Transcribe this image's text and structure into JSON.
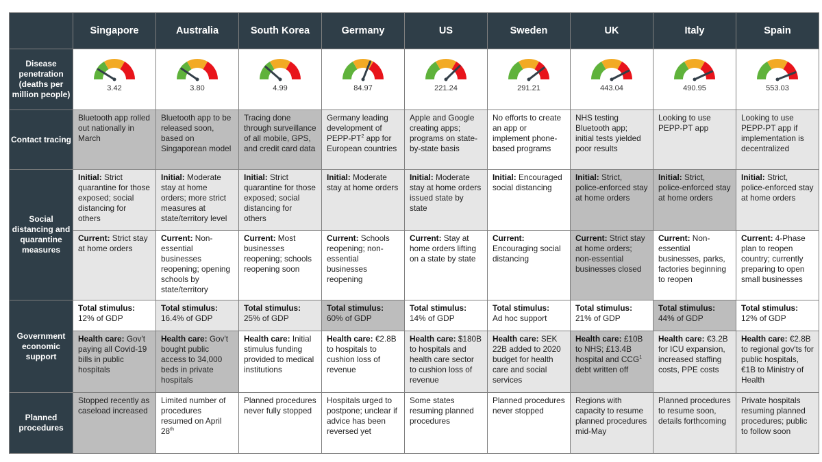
{
  "colors": {
    "header_bg": "#2f3e48",
    "gauge_green": "#5fb23b",
    "gauge_orange": "#f2aa24",
    "gauge_red": "#e8141b"
  },
  "columns": [
    "Singapore",
    "Australia",
    "South Korea",
    "Germany",
    "US",
    "Sweden",
    "UK",
    "Italy",
    "Spain"
  ],
  "rows": {
    "disease": "Disease penetration (deaths per million people)",
    "contact": "Contact tracing",
    "social": "Social distancing and quarantine measures",
    "gov": "Government economic support",
    "planned": "Planned procedures"
  },
  "gauges": [
    {
      "value": "3.42"
    },
    {
      "value": "3.80"
    },
    {
      "value": "4.99"
    },
    {
      "value": "84.97"
    },
    {
      "value": "221.24"
    },
    {
      "value": "291.21"
    },
    {
      "value": "443.04"
    },
    {
      "value": "490.95"
    },
    {
      "value": "553.03"
    }
  ],
  "contact_tracing": [
    {
      "text": "Bluetooth app rolled out nationally in March"
    },
    {
      "text": "Bluetooth app to be released soon, based on Singaporean model"
    },
    {
      "text": "Tracing done through surveillance of all mobile, GPS, and credit card data"
    },
    {
      "pre": "Germany leading development of PEPP-PT",
      "sup": "2",
      "post": " app for European countries"
    },
    {
      "text": "Apple and Google creating apps; programs on state-by-state basis"
    },
    {
      "text": "No efforts to create an app or implement phone-based programs"
    },
    {
      "text": "NHS testing Bluetooth app; initial tests yielded poor results"
    },
    {
      "text": "Looking to use PEPP-PT app"
    },
    {
      "text": "Looking to use PEPP-PT app if implementation is decentralized"
    }
  ],
  "social_initial": [
    {
      "label": "Initial:",
      "text": " Strict quarantine for those exposed; social distancing for others"
    },
    {
      "label": "Initial:",
      "text": " Moderate stay at home orders; more strict measures at state/territory level"
    },
    {
      "label": "Initial:",
      "text": " Strict quarantine for those exposed; social distancing for others"
    },
    {
      "label": "Initial:",
      "text": " Moderate stay at home orders"
    },
    {
      "label": "Initial:",
      "text": " Moderate stay at home orders issued state by state"
    },
    {
      "label": "Initial:",
      "text": " Encouraged social distancing"
    },
    {
      "label": "Initial:",
      "text": " Strict, police-enforced stay at home orders"
    },
    {
      "label": "Initial:",
      "text": " Strict, police-enforced stay at home orders"
    },
    {
      "label": "Initial:",
      "text": " Strict, police-enforced stay at home orders"
    }
  ],
  "social_current": [
    {
      "label": "Current:",
      "text": " Strict stay at home orders"
    },
    {
      "label": "Current:",
      "text": " Non-essential businesses reopening; opening schools by state/territory"
    },
    {
      "label": "Current:",
      "text": " Most businesses reopening; schools reopening soon"
    },
    {
      "label": "Current:",
      "text": " Schools reopening; non-essential businesses reopening"
    },
    {
      "label": "Current:",
      "text": " Stay at home orders lifting on a state by state"
    },
    {
      "label": "Current:",
      "text": " Encouraging social distancing"
    },
    {
      "label": "Current:",
      "text": " Strict stay at home orders; non-essential businesses closed"
    },
    {
      "label": "Current:",
      "text": " Non-essential businesses, parks, factories beginning to reopen"
    },
    {
      "label": "Current:",
      "text": " 4-Phase plan to reopen country; currently preparing to open small businesses"
    }
  ],
  "stimulus": [
    {
      "label": "Total stimulus:",
      "text": "12% of GDP"
    },
    {
      "label": "Total stimulus:",
      "text": "16.4% of GDP"
    },
    {
      "label": "Total stimulus:",
      "text": "25% of GDP"
    },
    {
      "label": "Total stimulus:",
      "text": "60% of GDP"
    },
    {
      "label": "Total stimulus:",
      "text": "14% of GDP"
    },
    {
      "label": "Total stimulus:",
      "text": "Ad hoc support"
    },
    {
      "label": "Total stimulus:",
      "text": "21% of GDP"
    },
    {
      "label": "Total stimulus:",
      "text": "44% of GDP"
    },
    {
      "label": "Total stimulus:",
      "text": "12% of GDP"
    }
  ],
  "health": [
    {
      "label": "Health care:",
      "pre": " Gov't paying all Covid-19 bills in public hospitals"
    },
    {
      "label": "Health care:",
      "pre": " Gov't bought public access to 34,000 beds in private hospitals"
    },
    {
      "label": "Health care:",
      "pre": " Initial stimulus funding provided to medical institutions"
    },
    {
      "label": "Health care:",
      "pre": " €2.8B to hospitals to cushion loss of revenue"
    },
    {
      "label": "Health care:",
      "pre": " $180B to hospitals and health care sector to cushion loss of revenue"
    },
    {
      "label": "Health care:",
      "pre": " SEK 22B added to 2020 budget for health care and social services"
    },
    {
      "label": "Health care:",
      "pre": " £10B to NHS; £13.4B hospital and CCG",
      "sup": "1",
      "post": " debt written off"
    },
    {
      "label": "Health care:",
      "pre": " €3.2B for ICU expansion, increased staffing costs, PPE costs"
    },
    {
      "label": "Health care:",
      "pre": " €2.8B to regional gov'ts for public hospitals, €1B to Ministry of Health"
    }
  ],
  "planned": [
    {
      "pre": "Stopped recently as caseload increased"
    },
    {
      "pre": "Limited number of procedures resumed on April 28",
      "sup": "th"
    },
    {
      "pre": "Planned procedures never fully stopped"
    },
    {
      "pre": "Hospitals urged to postpone; unclear if advice has been reversed yet"
    },
    {
      "pre": "Some states resuming planned procedures"
    },
    {
      "pre": "Planned procedures never stopped"
    },
    {
      "pre": "Regions with capacity to resume planned procedures mid-May"
    },
    {
      "pre": "Planned procedures to resume soon, details forthcoming"
    },
    {
      "pre": "Private hospitals resuming planned procedures; public to follow soon"
    }
  ]
}
